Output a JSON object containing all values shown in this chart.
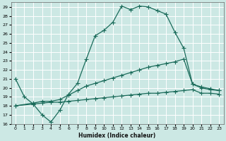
{
  "xlabel": "Humidex (Indice chaleur)",
  "background_color": "#cce8e4",
  "grid_color": "#b0d4d0",
  "line_color": "#1a6b5a",
  "xlim": [
    -0.5,
    23.5
  ],
  "ylim": [
    16,
    29.5
  ],
  "xticks": [
    0,
    1,
    2,
    3,
    4,
    5,
    6,
    7,
    8,
    9,
    10,
    11,
    12,
    13,
    14,
    15,
    16,
    17,
    18,
    19,
    20,
    21,
    22,
    23
  ],
  "yticks": [
    16,
    17,
    18,
    19,
    20,
    21,
    22,
    23,
    24,
    25,
    26,
    27,
    28,
    29
  ],
  "line1_x": [
    0,
    1,
    2,
    3,
    4,
    5,
    6,
    7,
    8,
    9,
    10,
    11,
    12,
    13,
    14,
    15,
    16,
    17,
    18,
    19,
    20,
    21,
    22,
    23
  ],
  "line1_y": [
    21,
    19,
    18.2,
    17,
    16.2,
    17.5,
    19.3,
    20.5,
    23.2,
    25.8,
    26.4,
    27.3,
    29.1,
    28.7,
    29.1,
    29.0,
    28.6,
    28.2,
    26.2,
    24.4,
    20.4,
    20.0,
    19.8,
    19.7
  ],
  "line2_x": [
    0,
    2,
    3,
    4,
    5,
    6,
    7,
    8,
    9,
    10,
    11,
    12,
    13,
    14,
    15,
    16,
    17,
    18,
    19,
    20,
    21,
    22,
    23
  ],
  "line2_y": [
    18,
    18.3,
    18.5,
    18.5,
    18.7,
    19.2,
    19.7,
    20.2,
    20.5,
    20.8,
    21.1,
    21.4,
    21.7,
    22.0,
    22.3,
    22.5,
    22.7,
    22.9,
    23.2,
    20.4,
    20.1,
    19.9,
    19.7
  ],
  "line3_x": [
    0,
    2,
    3,
    4,
    5,
    6,
    7,
    8,
    9,
    10,
    11,
    12,
    13,
    14,
    15,
    16,
    17,
    18,
    19,
    20,
    21,
    22,
    23
  ],
  "line3_y": [
    18,
    18.2,
    18.3,
    18.4,
    18.4,
    18.5,
    18.6,
    18.7,
    18.8,
    18.9,
    19.0,
    19.1,
    19.2,
    19.3,
    19.4,
    19.4,
    19.5,
    19.6,
    19.7,
    19.8,
    19.4,
    19.4,
    19.3
  ]
}
